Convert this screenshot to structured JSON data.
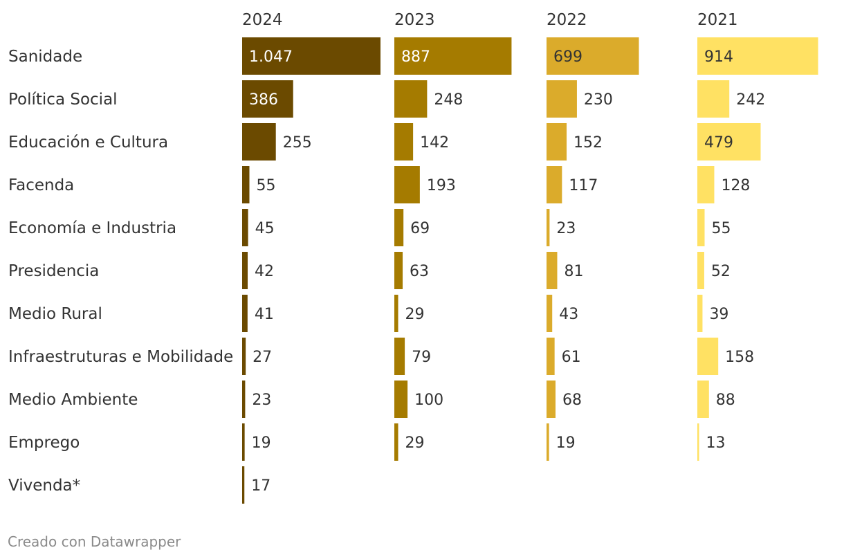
{
  "chart_data": {
    "type": "bar",
    "layout": "small-multiples-horizontal",
    "categories": [
      "Sanidade",
      "Política Social",
      "Educación e Cultura",
      "Facenda",
      "Economía e Industria",
      "Presidencia",
      "Medio Rural",
      "Infraestruturas e Mobilidade",
      "Medio Ambiente",
      "Emprego",
      "Vivenda*"
    ],
    "series": [
      {
        "name": "2024",
        "color": "#6b4a00",
        "label_inside_color": "#ffffff",
        "values": [
          1047,
          386,
          255,
          55,
          45,
          42,
          41,
          27,
          23,
          19,
          17
        ],
        "labels": [
          "1.047",
          "386",
          "255",
          "55",
          "45",
          "42",
          "41",
          "27",
          "23",
          "19",
          "17"
        ]
      },
      {
        "name": "2023",
        "color": "#a57b00",
        "label_inside_color": "#ffffff",
        "values": [
          887,
          248,
          142,
          193,
          69,
          63,
          29,
          79,
          100,
          29,
          null
        ],
        "labels": [
          "887",
          "248",
          "142",
          "193",
          "69",
          "63",
          "29",
          "79",
          "100",
          "29",
          ""
        ]
      },
      {
        "name": "2022",
        "color": "#dbab2b",
        "label_inside_color": "#333333",
        "values": [
          699,
          230,
          152,
          117,
          23,
          81,
          43,
          61,
          68,
          19,
          null
        ],
        "labels": [
          "699",
          "230",
          "152",
          "117",
          "23",
          "81",
          "43",
          "61",
          "68",
          "19",
          ""
        ]
      },
      {
        "name": "2021",
        "color": "#ffe163",
        "label_inside_color": "#333333",
        "values": [
          914,
          242,
          479,
          128,
          55,
          52,
          39,
          158,
          88,
          13,
          null
        ],
        "labels": [
          "914",
          "242",
          "479",
          "128",
          "55",
          "52",
          "39",
          "158",
          "88",
          "13",
          ""
        ]
      }
    ],
    "xlim": [
      0,
      1047
    ],
    "grid": false,
    "title": "",
    "xlabel": "",
    "ylabel": ""
  },
  "footer": {
    "credit": "Creado con Datawrapper"
  }
}
